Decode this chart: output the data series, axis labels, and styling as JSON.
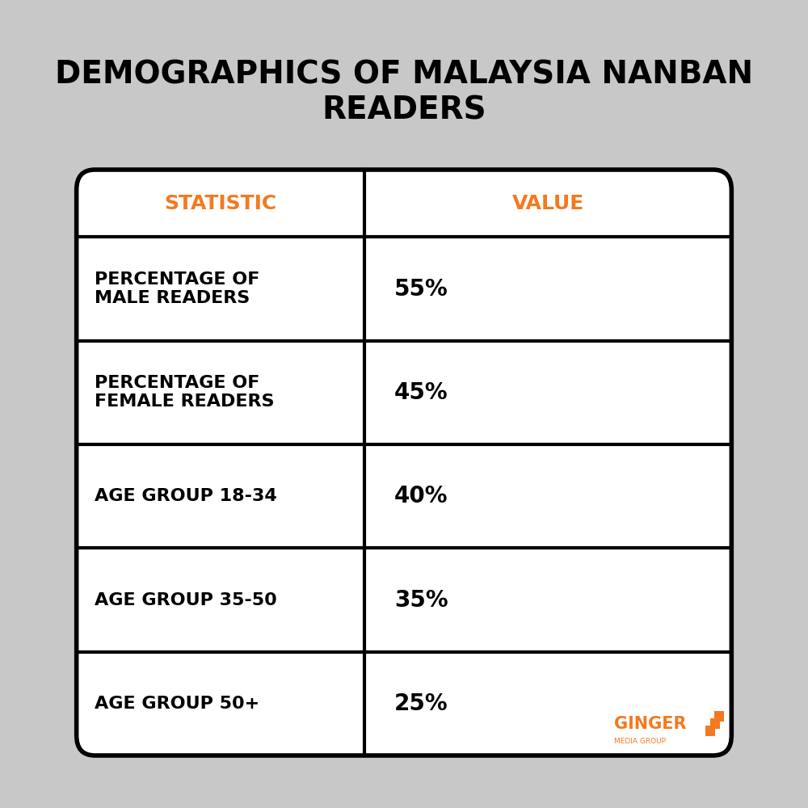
{
  "title": "DEMOGRAPHICS OF MALAYSIA NANBAN\nREADERS",
  "title_fontsize": 28,
  "background_color": "#c8c8c8",
  "table_bg": "#ffffff",
  "header_text_color": "#f47920",
  "cell_text_color": "#000000",
  "border_color": "#000000",
  "header": [
    "STATISTIC",
    "VALUE"
  ],
  "rows": [
    [
      "PERCENTAGE OF\nMALE READERS",
      "55%"
    ],
    [
      "PERCENTAGE OF\nFEMALE READERS",
      "45%"
    ],
    [
      "AGE GROUP 18-34",
      "40%"
    ],
    [
      "AGE GROUP 35-50",
      "35%"
    ],
    [
      "AGE GROUP 50+",
      "25%"
    ]
  ],
  "orange_color": "#f47920",
  "logo_text": "GINGER",
  "logo_subtext": "MEDIA GROUP"
}
